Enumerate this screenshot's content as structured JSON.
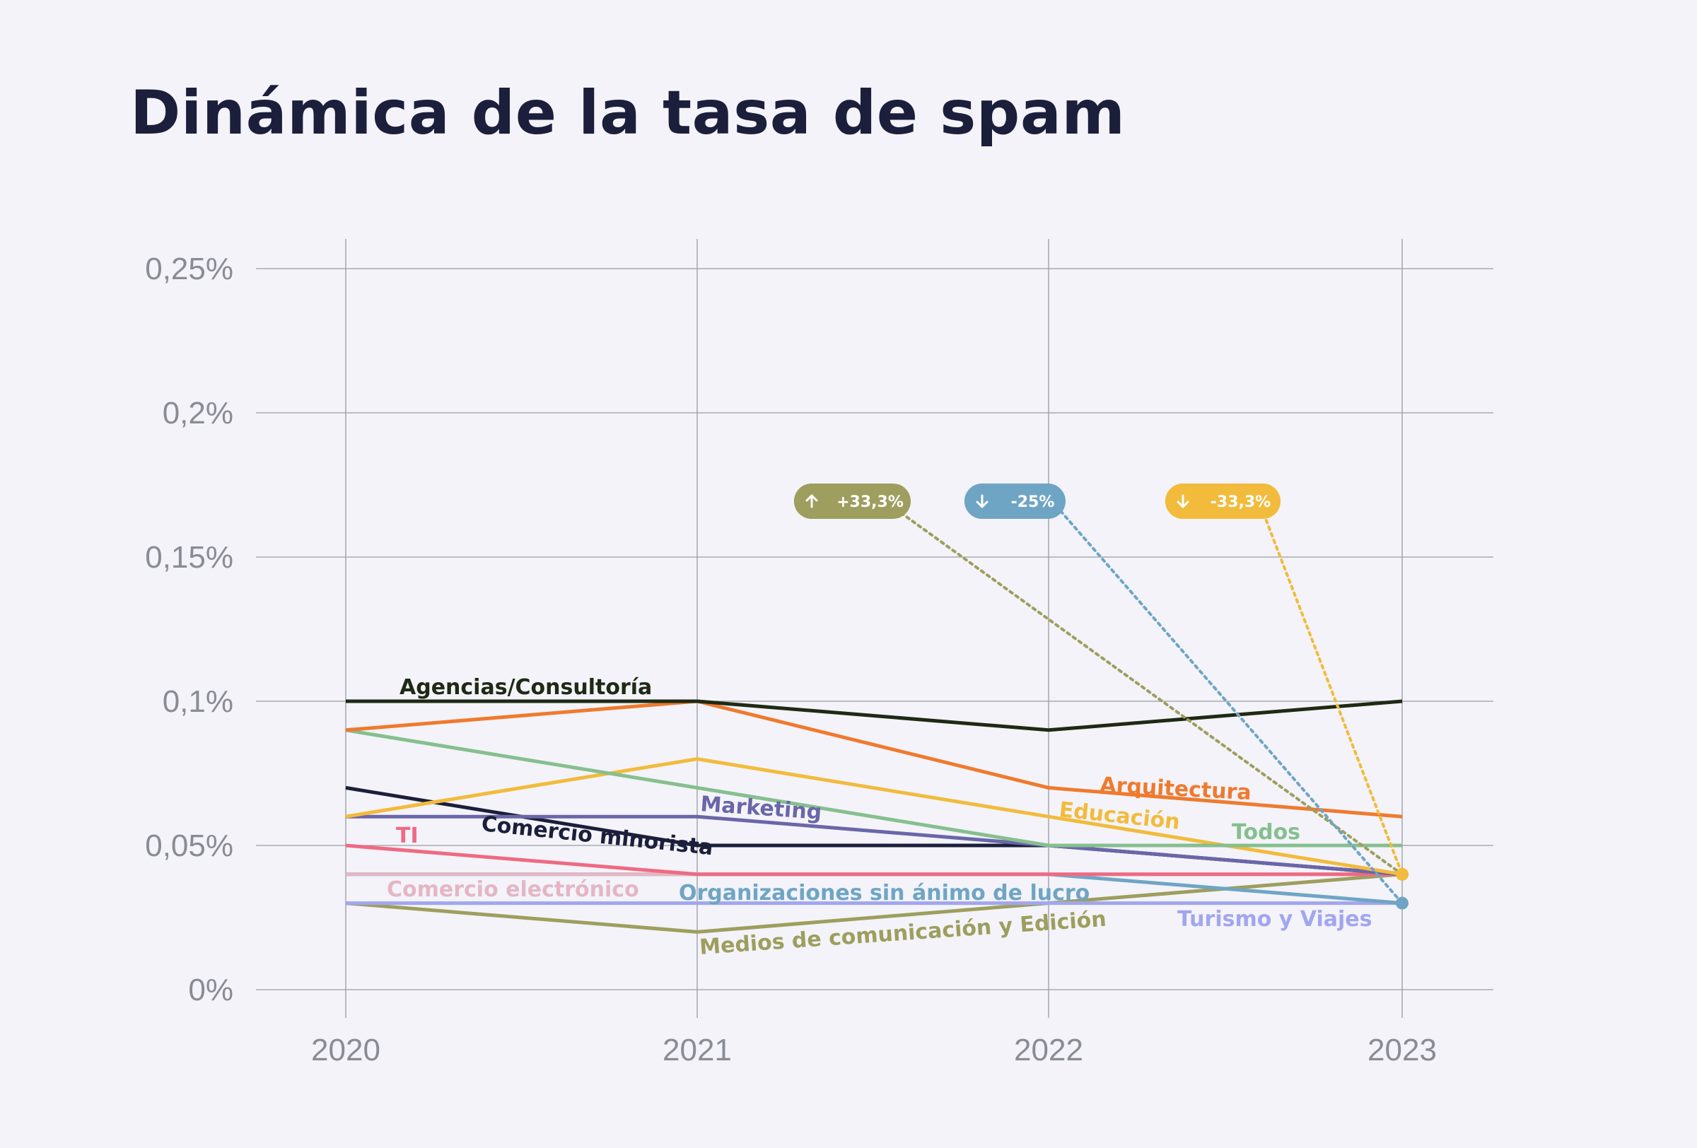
{
  "title": "Dinámica de la tasa de spam",
  "chart_data": {
    "type": "line",
    "title": "Dinámica de la tasa de spam",
    "xlabel": "",
    "ylabel": "",
    "x": [
      "2020",
      "2021",
      "2022",
      "2023"
    ],
    "y_ticks": [
      "0%",
      "0,05%",
      "0,1%",
      "0,15%",
      "0,2%",
      "0,25%"
    ],
    "ylim": [
      0,
      0.25
    ],
    "grid": true,
    "series": [
      {
        "name": "Agencias/Consultoría",
        "values": [
          0.1,
          0.1,
          0.09,
          0.1
        ],
        "color": "#1e2a14"
      },
      {
        "name": "Arquitectura",
        "values": [
          0.09,
          0.1,
          0.07,
          0.06
        ],
        "color": "#ef7a2e"
      },
      {
        "name": "Todos",
        "values": [
          0.09,
          0.07,
          0.05,
          0.05
        ],
        "color": "#86bf8e"
      },
      {
        "name": "Educación",
        "values": [
          0.06,
          0.08,
          0.06,
          0.04
        ],
        "color": "#f2bb3c"
      },
      {
        "name": "Marketing",
        "values": [
          0.06,
          0.06,
          0.05,
          0.04
        ],
        "color": "#6a66a8"
      },
      {
        "name": "Comercio minorista",
        "values": [
          0.07,
          0.05,
          0.05,
          0.04
        ],
        "color": "#1b1f3b"
      },
      {
        "name": "TI",
        "values": [
          0.05,
          0.04,
          0.04,
          0.04
        ],
        "color": "#ee6a83"
      },
      {
        "name": "Comercio electrónico",
        "values": [
          0.04,
          0.04,
          0.04,
          0.04
        ],
        "color": "#e4b6c4"
      },
      {
        "name": "Organizaciones sin ánimo de lucro",
        "values": [
          0.04,
          0.04,
          0.04,
          0.03
        ],
        "color": "#6fa5c4"
      },
      {
        "name": "Turismo y Viajes",
        "values": [
          0.03,
          0.03,
          0.03,
          0.03
        ],
        "color": "#a2a6ee"
      },
      {
        "name": "Medios de comunicación y Edición",
        "values": [
          0.03,
          0.02,
          0.03,
          0.04
        ],
        "color": "#9e9e5e"
      }
    ],
    "annotations": [
      {
        "text": "+33,3%",
        "direction": "up",
        "color": "#9e9e5e",
        "target_series": "Medios de comunicación y Edición"
      },
      {
        "text": "-25%",
        "direction": "down",
        "color": "#6fa5c4",
        "target_series": "Organizaciones sin ánimo de lucro"
      },
      {
        "text": "-33,3%",
        "direction": "down",
        "color": "#f2bb3c",
        "target_series": "Educación"
      }
    ]
  }
}
